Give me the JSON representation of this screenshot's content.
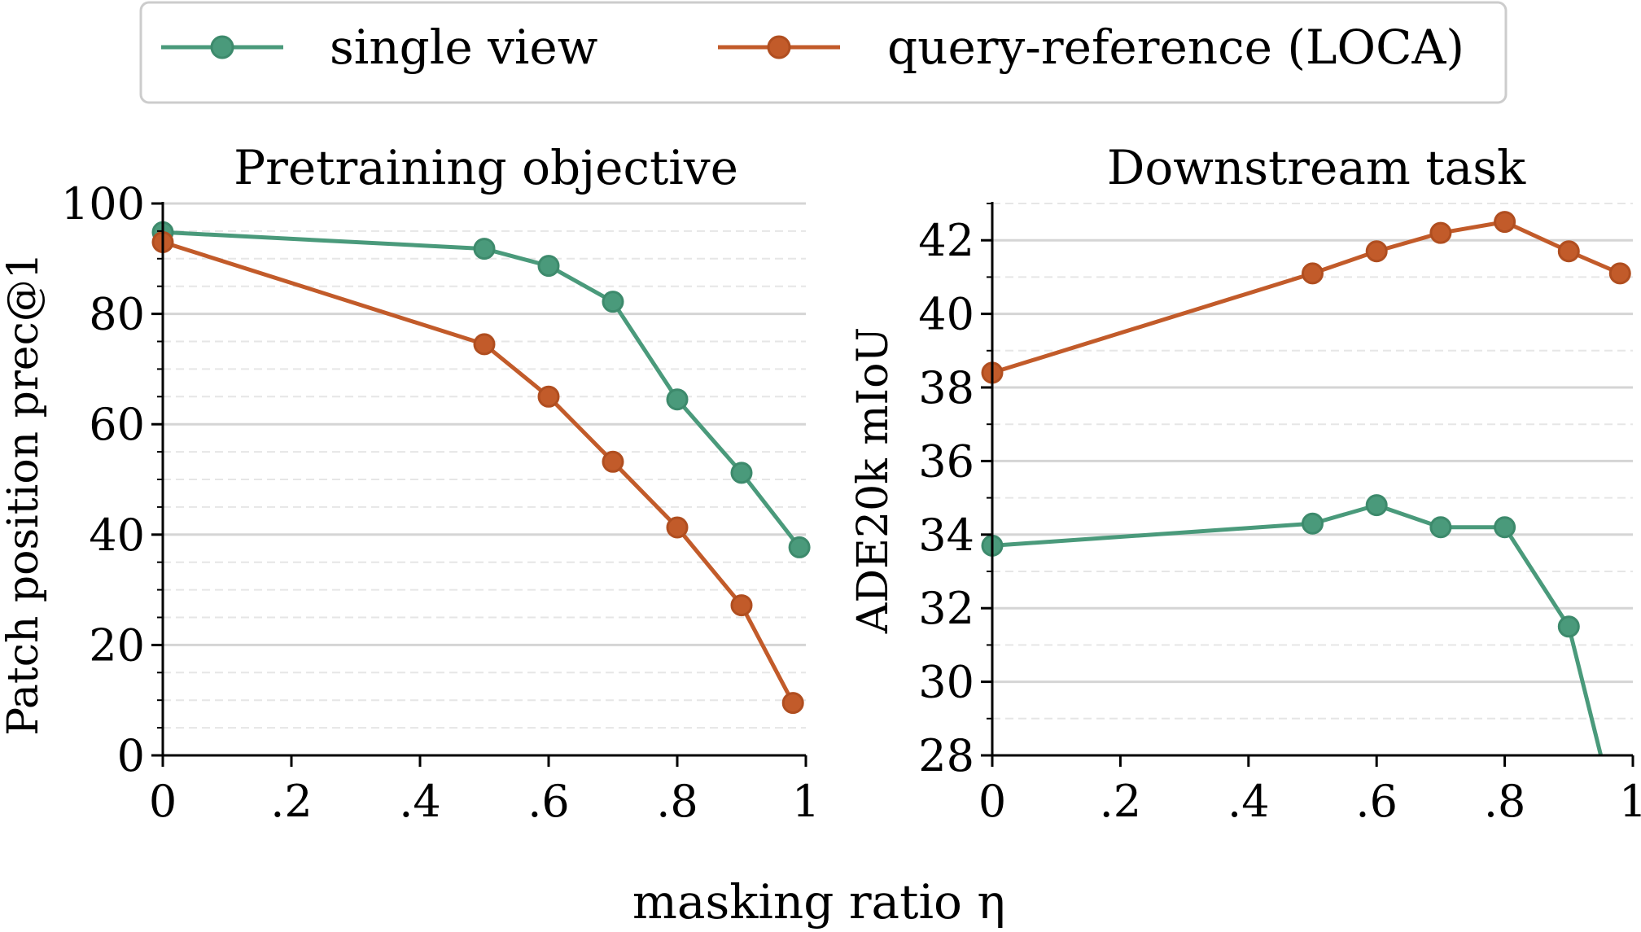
{
  "figure": {
    "xlabel": "masking ratio η"
  },
  "legend": {
    "placement": "top-center",
    "entries": [
      "single view",
      "query-reference (LOCA)"
    ]
  },
  "colors": {
    "single_view": "#4a9a7b",
    "loca": "#c25b2a",
    "grid_major": "#d5d5d5",
    "grid_minor": "#e6e6e6"
  },
  "chart_data": [
    {
      "type": "line",
      "title": "Pretraining objective",
      "xlabel": "",
      "ylabel": "Patch position prec@1",
      "xlim": [
        0,
        1
      ],
      "ylim": [
        0,
        100
      ],
      "xticks": [
        0,
        0.2,
        0.4,
        0.6,
        0.8,
        1
      ],
      "xtick_labels": [
        "0",
        ".2",
        ".4",
        ".6",
        ".8",
        "1"
      ],
      "yticks": [
        0,
        20,
        40,
        60,
        80,
        100
      ],
      "ytick_labels": [
        "0",
        "20",
        "40",
        "60",
        "80",
        "100"
      ],
      "grid": true,
      "series": [
        {
          "name": "single view",
          "x": [
            0,
            0.5,
            0.6,
            0.7,
            0.8,
            0.9,
            0.99
          ],
          "y": [
            94.8,
            91.8,
            88.7,
            82.2,
            64.5,
            51.2,
            37.7
          ]
        },
        {
          "name": "query-reference (LOCA)",
          "x": [
            0,
            0.5,
            0.6,
            0.7,
            0.8,
            0.9,
            0.98
          ],
          "y": [
            93.0,
            74.5,
            65.0,
            53.2,
            41.3,
            27.2,
            9.5
          ]
        }
      ]
    },
    {
      "type": "line",
      "title": "Downstream task",
      "xlabel": "",
      "ylabel": "ADE20k mIoU",
      "xlim": [
        0,
        1
      ],
      "ylim": [
        28,
        43
      ],
      "xticks": [
        0,
        0.2,
        0.4,
        0.6,
        0.8,
        1
      ],
      "xtick_labels": [
        "0",
        ".2",
        ".4",
        ".6",
        ".8",
        "1"
      ],
      "yticks": [
        28,
        30,
        32,
        34,
        36,
        38,
        40,
        42
      ],
      "ytick_labels": [
        "28",
        "30",
        "32",
        "34",
        "36",
        "38",
        "40",
        "42"
      ],
      "grid": true,
      "series": [
        {
          "name": "single view",
          "x": [
            0,
            0.5,
            0.6,
            0.7,
            0.8,
            0.9,
            0.95
          ],
          "y": [
            33.7,
            34.3,
            34.8,
            34.2,
            34.2,
            31.5,
            28.0
          ]
        },
        {
          "name": "query-reference (LOCA)",
          "x": [
            0,
            0.5,
            0.6,
            0.7,
            0.8,
            0.9,
            0.98
          ],
          "y": [
            38.4,
            41.1,
            41.7,
            42.2,
            42.5,
            41.7,
            41.1
          ]
        }
      ]
    }
  ]
}
